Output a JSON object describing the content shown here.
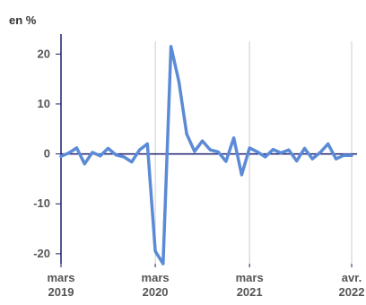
{
  "chart_data": {
    "type": "line",
    "unit_label": "en %",
    "ylim": [
      -22,
      24
    ],
    "y_ticks": [
      20,
      10,
      0,
      -10,
      -20
    ],
    "y_tick_labels": [
      "20",
      "10",
      "0",
      "-10",
      "-20"
    ],
    "x_ticks": [
      {
        "index": 0,
        "line1": "mars",
        "line2": "2019"
      },
      {
        "index": 12,
        "line1": "mars",
        "line2": "2020"
      },
      {
        "index": 24,
        "line1": "mars",
        "line2": "2021"
      },
      {
        "index": 37,
        "line1": "avr.",
        "line2": "2022"
      }
    ],
    "grid": "vertical",
    "series": [
      {
        "color": "#5b8bd6",
        "x": [
          "2019-03",
          "2019-04",
          "2019-05",
          "2019-06",
          "2019-07",
          "2019-08",
          "2019-09",
          "2019-10",
          "2019-11",
          "2019-12",
          "2020-01",
          "2020-02",
          "2020-03",
          "2020-04",
          "2020-05",
          "2020-06",
          "2020-07",
          "2020-08",
          "2020-09",
          "2020-10",
          "2020-11",
          "2020-12",
          "2021-01",
          "2021-02",
          "2021-03",
          "2021-04",
          "2021-05",
          "2021-06",
          "2021-07",
          "2021-08",
          "2021-09",
          "2021-10",
          "2021-11",
          "2021-12",
          "2022-01",
          "2022-02",
          "2022-03",
          "2022-04"
        ],
        "values": [
          -0.5,
          0.2,
          1.2,
          -2.0,
          0.3,
          -0.4,
          1.1,
          -0.2,
          -0.6,
          -1.6,
          0.8,
          2.0,
          -19.5,
          -22.0,
          21.5,
          14.5,
          4.0,
          0.5,
          2.6,
          0.8,
          0.4,
          -1.5,
          3.2,
          -4.2,
          1.2,
          0.4,
          -0.6,
          0.9,
          0.2,
          0.8,
          -1.4,
          1.1,
          -1.0,
          0.3,
          2.0,
          -1.0,
          -0.3,
          -0.3
        ]
      }
    ],
    "axis_color": "#1c1c6e",
    "grid_color": "#cccccc"
  }
}
